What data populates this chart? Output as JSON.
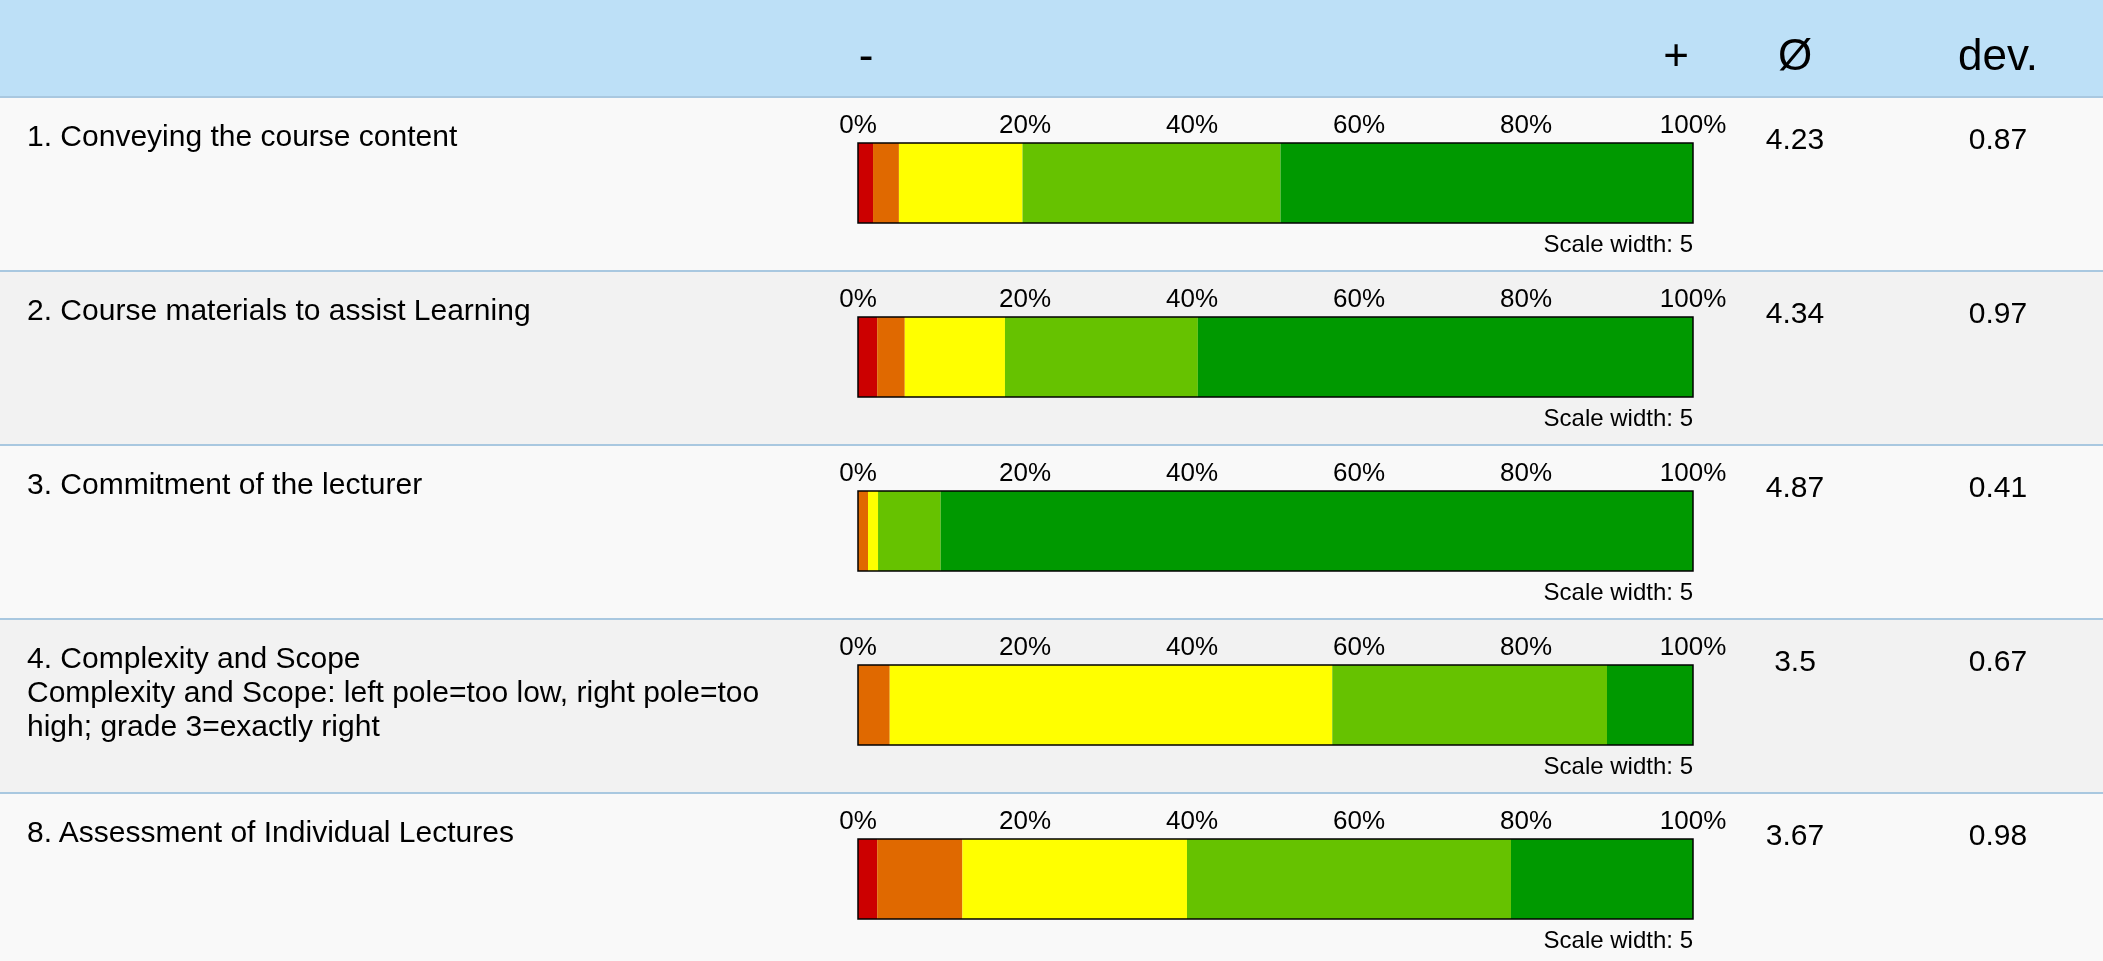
{
  "chart_data": {
    "type": "bar",
    "orientation": "horizontal",
    "stacked": true,
    "categories": [
      "1. Conveying the course content",
      "2. Course materials to assist Learning",
      "3. Commitment of the lecturer",
      "4. Complexity and Scope\nComplexity and Scope: left pole=too low, right pole=too high; grade 3=exactly right",
      "8. Assessment of Individual Lectures"
    ],
    "series": [
      {
        "color": "#cc0000",
        "values": [
          1.8,
          2.3,
          0,
          0,
          2.3
        ]
      },
      {
        "color": "#e06900",
        "values": [
          3.1,
          3.3,
          1.2,
          3.8,
          10.2
        ]
      },
      {
        "color": "#ffff00",
        "values": [
          14.8,
          12.0,
          1.2,
          53.0,
          26.9
        ]
      },
      {
        "color": "#66c200",
        "values": [
          30.9,
          23.1,
          7.5,
          32.9,
          38.8
        ]
      },
      {
        "color": "#009900",
        "values": [
          49.4,
          59.3,
          90.1,
          10.3,
          21.8
        ]
      }
    ],
    "xlim": [
      0,
      100
    ],
    "xticks": [
      {
        "value": 0,
        "label": "0%"
      },
      {
        "value": 20,
        "label": "20%"
      },
      {
        "value": 40,
        "label": "40%"
      },
      {
        "value": 60,
        "label": "60%"
      },
      {
        "value": 80,
        "label": "80%"
      },
      {
        "value": 100,
        "label": "100%"
      }
    ],
    "annotations": [
      "-",
      "+",
      "Ø",
      "dev.",
      "4.23",
      "0.87",
      "Scale width: 5",
      "4.34",
      "0.97",
      "Scale width: 5",
      "4.87",
      "0.41",
      "Scale width: 5",
      "3.5",
      "0.67",
      "Scale width: 5",
      "3.67",
      "0.98",
      "Scale width: 5"
    ]
  }
}
